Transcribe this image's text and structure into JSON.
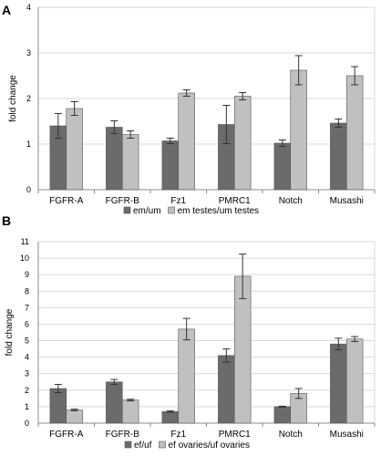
{
  "chart_data": [
    {
      "panel": "A",
      "type": "bar",
      "categories": [
        "FGFR-A",
        "FGFR-B",
        "Fz1",
        "PMRC1",
        "Notch",
        "Musashi"
      ],
      "series": [
        {
          "name": "em/um",
          "values": [
            1.4,
            1.37,
            1.07,
            1.43,
            1.02,
            1.46
          ],
          "errors": [
            0.27,
            0.14,
            0.06,
            0.42,
            0.07,
            0.09
          ],
          "color": "#6b6b6b"
        },
        {
          "name": "em testes/um testes",
          "values": [
            1.78,
            1.21,
            2.12,
            2.05,
            2.62,
            2.5
          ],
          "errors": [
            0.15,
            0.08,
            0.07,
            0.08,
            0.32,
            0.2
          ],
          "color": "#c0c0c0"
        }
      ],
      "ylabel": "fold change",
      "ylim": [
        0,
        4
      ],
      "yticks": [
        0,
        1,
        2,
        3,
        4
      ],
      "grid": true,
      "legend": "bottom"
    },
    {
      "panel": "B",
      "type": "bar",
      "categories": [
        "FGFR-A",
        "FGFR-B",
        "Fz1",
        "PMRC1",
        "Notch",
        "Musashi"
      ],
      "series": [
        {
          "name": "ef/uf",
          "values": [
            2.1,
            2.5,
            0.7,
            4.1,
            1.0,
            4.8
          ],
          "errors": [
            0.25,
            0.15,
            0.05,
            0.4,
            0.03,
            0.35
          ],
          "color": "#6b6b6b"
        },
        {
          "name": "ef ovaries/uf ovaries",
          "values": [
            0.8,
            1.4,
            5.7,
            8.9,
            1.8,
            5.1
          ],
          "errors": [
            0.05,
            0.05,
            0.65,
            1.35,
            0.3,
            0.15
          ],
          "color": "#c0c0c0"
        }
      ],
      "ylabel": "fold change",
      "ylim": [
        0,
        11
      ],
      "yticks": [
        0,
        1,
        2,
        3,
        4,
        5,
        6,
        7,
        8,
        9,
        10,
        11
      ],
      "grid": true,
      "legend": "bottom"
    }
  ],
  "panels": {
    "A": {
      "letter": "A"
    },
    "B": {
      "letter": "B"
    }
  }
}
